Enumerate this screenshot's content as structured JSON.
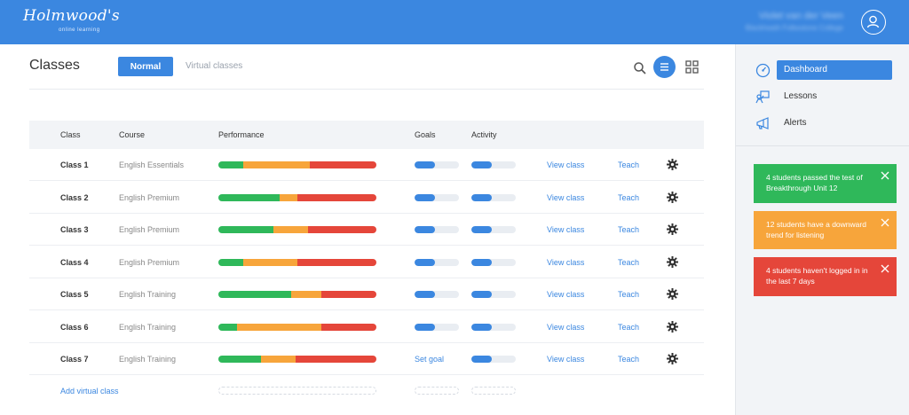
{
  "header": {
    "logo": "Holmwood's",
    "logo_sub": "online learning",
    "user_name": "Violet van der Veen",
    "user_school": "Blackheath Folkestone College"
  },
  "main": {
    "title": "Classes",
    "tabs": [
      {
        "label": "Normal",
        "active": true
      },
      {
        "label": "Virtual classes",
        "active": false
      }
    ],
    "columns": [
      "Class",
      "Course",
      "Performance",
      "Goals",
      "Activity"
    ],
    "rows": [
      {
        "class": "Class 1",
        "course": "English Essentials",
        "performance": [
          16,
          42,
          42
        ],
        "goal": 45,
        "activity": 45
      },
      {
        "class": "Class 2",
        "course": "English Premium",
        "performance": [
          39,
          11,
          50
        ],
        "goal": 45,
        "activity": 45
      },
      {
        "class": "Class 3",
        "course": "English Premium",
        "performance": [
          35,
          22,
          43
        ],
        "goal": 45,
        "activity": 45
      },
      {
        "class": "Class 4",
        "course": "English Premium",
        "performance": [
          16,
          34,
          50
        ],
        "goal": 45,
        "activity": 45
      },
      {
        "class": "Class 5",
        "course": "English Training",
        "performance": [
          46,
          19,
          35
        ],
        "goal": 45,
        "activity": 45
      },
      {
        "class": "Class 6",
        "course": "English Training",
        "performance": [
          12,
          53,
          35
        ],
        "goal": 45,
        "activity": 45
      },
      {
        "class": "Class 7",
        "course": "English Training",
        "performance": [
          27,
          22,
          51
        ],
        "goal": null,
        "activity": 45
      }
    ],
    "set_goal_label": "Set goal",
    "view_label": "View class",
    "teach_label": "Teach",
    "add_label": "Add virtual class"
  },
  "sidebar": {
    "nav": [
      {
        "label": "Dashboard",
        "icon": "speedometer-icon",
        "active": true
      },
      {
        "label": "Lessons",
        "icon": "lessons-icon",
        "active": false
      },
      {
        "label": "Alerts",
        "icon": "megaphone-icon",
        "active": false
      }
    ],
    "alerts": [
      {
        "text": "4 students passed the test of Breakthrough Unit 12",
        "color": "#2fb85a"
      },
      {
        "text": "12 students have a downward trend for listening",
        "color": "#f7a53b"
      },
      {
        "text": "4 students haven't logged in in the last 7 days",
        "color": "#e5463a"
      }
    ]
  },
  "colors": {
    "accent": "#3b87e0",
    "good": "#2fb85a",
    "medium": "#f7a53b",
    "bad": "#e5463a"
  }
}
